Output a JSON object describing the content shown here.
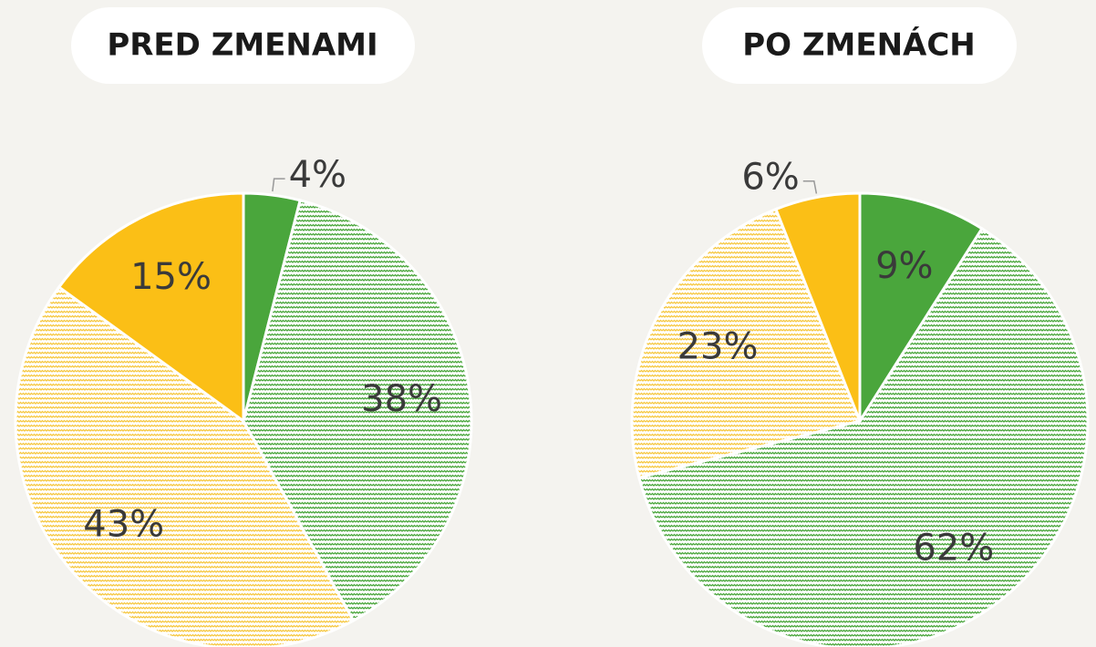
{
  "chart_data": [
    {
      "type": "pie",
      "title": "PRED ZMENAMI",
      "values": [
        4,
        38,
        43,
        15
      ],
      "value_labels": [
        "4%",
        "38%",
        "43%",
        "15%"
      ],
      "colors": [
        "#4aa63c",
        "#4aa63c",
        "#f6c842",
        "#fbbf16"
      ],
      "hatched": [
        false,
        true,
        true,
        false
      ]
    },
    {
      "type": "pie",
      "title": "PO ZMENÁCH",
      "values": [
        9,
        62,
        23,
        6
      ],
      "value_labels": [
        "9%",
        "62%",
        "23%",
        "6%"
      ],
      "colors": [
        "#4aa63c",
        "#4aa63c",
        "#f6c842",
        "#fbbf16"
      ],
      "hatched": [
        false,
        true,
        true,
        false
      ]
    }
  ]
}
